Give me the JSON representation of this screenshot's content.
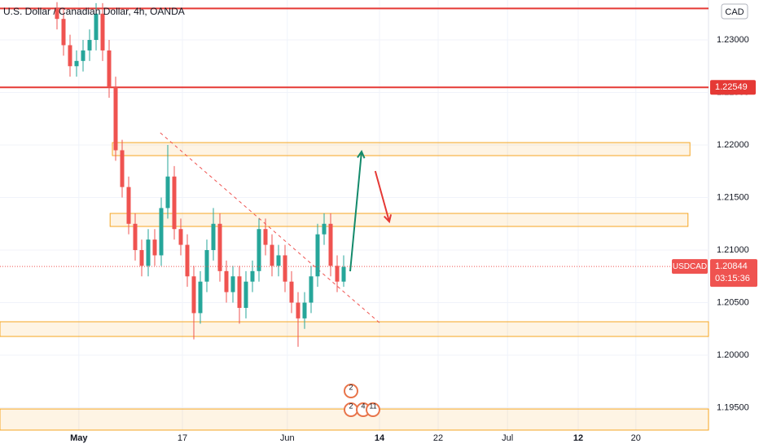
{
  "chart_data": {
    "type": "candlestick",
    "title": "U.S. Dollar / Canadian Dollar, 4h, OANDA",
    "currency": "CAD",
    "symbol": "USDCAD",
    "last_price": {
      "value": 1.20844,
      "label": "1.20844"
    },
    "countdown": "03:15:36",
    "up_color": "#26a69a",
    "down_color": "#ef5350",
    "x": [
      8.75,
      9.75,
      10.75,
      11.75,
      12.75,
      13.75,
      14.75,
      15.75,
      16.75,
      17.75,
      18.75,
      19.75,
      20.75,
      21.75,
      22.75,
      23.75,
      24.75,
      25.75,
      26.75,
      27.75,
      28.75,
      29.75,
      30.75,
      31.75,
      32.75,
      33.75,
      34.75,
      35.75,
      36.75,
      37.75,
      38.75,
      39.75,
      40.75,
      41.75,
      42.75,
      43.75,
      44.75,
      45.75,
      46.75,
      47.75,
      48.75,
      49.75,
      50.75,
      51.75,
      52.75
    ],
    "open": [
      1.233,
      1.232,
      1.2295,
      1.2275,
      1.228,
      1.229,
      1.23,
      1.2325,
      1.229,
      1.2255,
      1.2195,
      1.216,
      1.2125,
      1.21,
      1.2085,
      1.211,
      1.2095,
      1.214,
      1.217,
      1.212,
      1.2105,
      1.2075,
      1.204,
      1.207,
      1.21,
      1.2125,
      1.208,
      1.206,
      1.2075,
      1.2045,
      1.207,
      1.208,
      1.212,
      1.2105,
      1.2085,
      1.2095,
      1.207,
      1.205,
      1.2035,
      1.205,
      1.2075,
      1.2115,
      1.2125,
      1.2085,
      1.207
    ],
    "high": [
      1.2336,
      1.233,
      1.2305,
      1.229,
      1.23,
      1.231,
      1.2335,
      1.2335,
      1.23,
      1.2265,
      1.2205,
      1.217,
      1.2135,
      1.211,
      1.212,
      1.212,
      1.215,
      1.22,
      1.218,
      1.213,
      1.2115,
      1.2085,
      1.208,
      1.211,
      1.214,
      1.2135,
      1.209,
      1.2085,
      1.2085,
      1.208,
      1.209,
      1.213,
      1.213,
      1.2115,
      1.2105,
      1.2105,
      1.208,
      1.206,
      1.206,
      1.2085,
      1.2125,
      1.2135,
      1.2135,
      1.2095,
      1.2095
    ],
    "low": [
      1.231,
      1.2285,
      1.2265,
      1.2265,
      1.227,
      1.228,
      1.229,
      1.228,
      1.2245,
      1.2185,
      1.215,
      1.2115,
      1.209,
      1.2075,
      1.2075,
      1.2085,
      1.2085,
      1.213,
      1.211,
      1.2095,
      1.2065,
      1.2015,
      1.203,
      1.206,
      1.209,
      1.207,
      1.205,
      1.205,
      1.203,
      1.2035,
      1.206,
      1.207,
      1.2095,
      1.2075,
      1.2075,
      1.206,
      1.204,
      1.2008,
      1.2025,
      1.204,
      1.2065,
      1.2105,
      1.2075,
      1.206,
      1.2065
    ],
    "close": [
      1.232,
      1.2295,
      1.2275,
      1.228,
      1.229,
      1.23,
      1.2325,
      1.229,
      1.2255,
      1.2195,
      1.216,
      1.2125,
      1.21,
      1.2085,
      1.211,
      1.2095,
      1.214,
      1.217,
      1.212,
      1.2105,
      1.2075,
      1.204,
      1.207,
      1.21,
      1.2125,
      1.208,
      1.206,
      1.2075,
      1.2045,
      1.207,
      1.208,
      1.212,
      1.2105,
      1.2085,
      1.2095,
      1.207,
      1.205,
      1.2035,
      1.205,
      1.2075,
      1.2115,
      1.2125,
      1.2085,
      1.207,
      1.2084
    ],
    "xlim": [
      0,
      108.75
    ],
    "xticks": [
      {
        "value": 12.1,
        "label": "May"
      },
      {
        "value": 28,
        "label": "17"
      },
      {
        "value": 44.1,
        "label": "Jun"
      },
      {
        "value": 58.25,
        "label": "14"
      },
      {
        "value": 67.25,
        "label": "22"
      },
      {
        "value": 77.9,
        "label": "Jul"
      },
      {
        "value": 88.75,
        "label": "12"
      },
      {
        "value": 97.6,
        "label": "20"
      }
    ],
    "ylim": [
      1.19287,
      1.2338
    ],
    "yticks": [
      {
        "value": 1.195,
        "label": "1.19500"
      },
      {
        "value": 1.2,
        "label": "1.20000"
      },
      {
        "value": 1.205,
        "label": "1.20500"
      },
      {
        "value": 1.21,
        "label": "1.21000"
      },
      {
        "value": 1.215,
        "label": "1.21500"
      },
      {
        "value": 1.22,
        "label": "1.22000"
      },
      {
        "value": 1.225,
        "label": "1.22500"
      },
      {
        "value": 1.23,
        "label": "1.23000"
      }
    ],
    "levels": [
      {
        "value": 1.233
      },
      {
        "value": 1.22549,
        "label": "1.22549"
      }
    ],
    "level_color": "#e53935",
    "zone_color": "#f5a623",
    "zones": [
      {
        "x": [
          17.25,
          105.9
        ],
        "y": [
          1.21899,
          1.22023
        ]
      },
      {
        "x": [
          16.9,
          105.6
        ],
        "y": [
          1.21225,
          1.21349
        ]
      },
      {
        "x": [
          0,
          108.75
        ],
        "y": [
          1.20178,
          1.20318
        ]
      },
      {
        "x": [
          0,
          108.75
        ],
        "y": [
          1.19287,
          1.19488
        ]
      }
    ],
    "trendline": {
      "x": [
        24.6,
        58.5
      ],
      "y": [
        1.22116,
        1.20295
      ]
    },
    "arrows": [
      {
        "color": "#138a6b",
        "x": [
          53.75,
          55.5
        ],
        "y": [
          1.20798,
          1.21938
        ]
      },
      {
        "color": "#e53935",
        "x": [
          57.6,
          59.75
        ],
        "y": [
          1.21752,
          1.21271
        ]
      }
    ],
    "events": [
      "2",
      "2",
      "4",
      "11"
    ]
  }
}
